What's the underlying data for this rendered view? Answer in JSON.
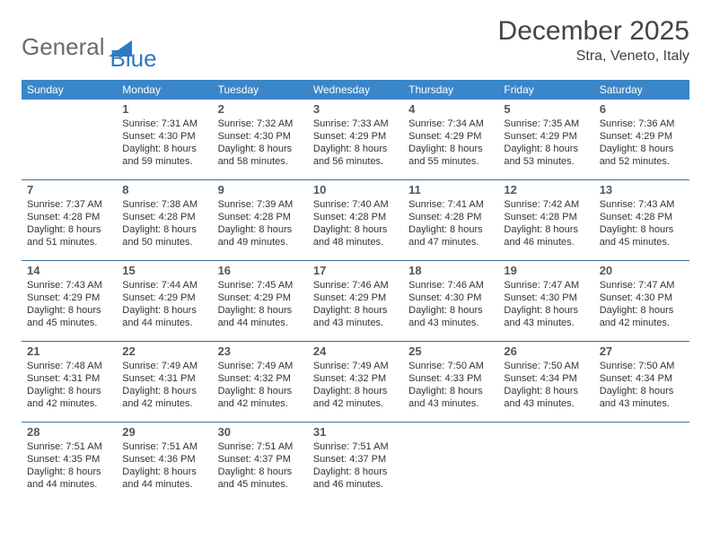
{
  "logo": {
    "text_pre": "General",
    "text_post": "Blue",
    "triangle_color": "#2f78c4"
  },
  "title": "December 2025",
  "location": "Stra, Veneto, Italy",
  "header_bg": "#3b86c8",
  "header_fg": "#ffffff",
  "row_border_color": "#3b6fa0",
  "text_color": "#333333",
  "font_family": "Arial",
  "day_headers": [
    "Sunday",
    "Monday",
    "Tuesday",
    "Wednesday",
    "Thursday",
    "Friday",
    "Saturday"
  ],
  "weeks": [
    [
      null,
      {
        "n": "1",
        "sr": "7:31 AM",
        "ss": "4:30 PM",
        "dl": "8 hours and 59 minutes."
      },
      {
        "n": "2",
        "sr": "7:32 AM",
        "ss": "4:30 PM",
        "dl": "8 hours and 58 minutes."
      },
      {
        "n": "3",
        "sr": "7:33 AM",
        "ss": "4:29 PM",
        "dl": "8 hours and 56 minutes."
      },
      {
        "n": "4",
        "sr": "7:34 AM",
        "ss": "4:29 PM",
        "dl": "8 hours and 55 minutes."
      },
      {
        "n": "5",
        "sr": "7:35 AM",
        "ss": "4:29 PM",
        "dl": "8 hours and 53 minutes."
      },
      {
        "n": "6",
        "sr": "7:36 AM",
        "ss": "4:29 PM",
        "dl": "8 hours and 52 minutes."
      }
    ],
    [
      {
        "n": "7",
        "sr": "7:37 AM",
        "ss": "4:28 PM",
        "dl": "8 hours and 51 minutes."
      },
      {
        "n": "8",
        "sr": "7:38 AM",
        "ss": "4:28 PM",
        "dl": "8 hours and 50 minutes."
      },
      {
        "n": "9",
        "sr": "7:39 AM",
        "ss": "4:28 PM",
        "dl": "8 hours and 49 minutes."
      },
      {
        "n": "10",
        "sr": "7:40 AM",
        "ss": "4:28 PM",
        "dl": "8 hours and 48 minutes."
      },
      {
        "n": "11",
        "sr": "7:41 AM",
        "ss": "4:28 PM",
        "dl": "8 hours and 47 minutes."
      },
      {
        "n": "12",
        "sr": "7:42 AM",
        "ss": "4:28 PM",
        "dl": "8 hours and 46 minutes."
      },
      {
        "n": "13",
        "sr": "7:43 AM",
        "ss": "4:28 PM",
        "dl": "8 hours and 45 minutes."
      }
    ],
    [
      {
        "n": "14",
        "sr": "7:43 AM",
        "ss": "4:29 PM",
        "dl": "8 hours and 45 minutes."
      },
      {
        "n": "15",
        "sr": "7:44 AM",
        "ss": "4:29 PM",
        "dl": "8 hours and 44 minutes."
      },
      {
        "n": "16",
        "sr": "7:45 AM",
        "ss": "4:29 PM",
        "dl": "8 hours and 44 minutes."
      },
      {
        "n": "17",
        "sr": "7:46 AM",
        "ss": "4:29 PM",
        "dl": "8 hours and 43 minutes."
      },
      {
        "n": "18",
        "sr": "7:46 AM",
        "ss": "4:30 PM",
        "dl": "8 hours and 43 minutes."
      },
      {
        "n": "19",
        "sr": "7:47 AM",
        "ss": "4:30 PM",
        "dl": "8 hours and 43 minutes."
      },
      {
        "n": "20",
        "sr": "7:47 AM",
        "ss": "4:30 PM",
        "dl": "8 hours and 42 minutes."
      }
    ],
    [
      {
        "n": "21",
        "sr": "7:48 AM",
        "ss": "4:31 PM",
        "dl": "8 hours and 42 minutes."
      },
      {
        "n": "22",
        "sr": "7:49 AM",
        "ss": "4:31 PM",
        "dl": "8 hours and 42 minutes."
      },
      {
        "n": "23",
        "sr": "7:49 AM",
        "ss": "4:32 PM",
        "dl": "8 hours and 42 minutes."
      },
      {
        "n": "24",
        "sr": "7:49 AM",
        "ss": "4:32 PM",
        "dl": "8 hours and 42 minutes."
      },
      {
        "n": "25",
        "sr": "7:50 AM",
        "ss": "4:33 PM",
        "dl": "8 hours and 43 minutes."
      },
      {
        "n": "26",
        "sr": "7:50 AM",
        "ss": "4:34 PM",
        "dl": "8 hours and 43 minutes."
      },
      {
        "n": "27",
        "sr": "7:50 AM",
        "ss": "4:34 PM",
        "dl": "8 hours and 43 minutes."
      }
    ],
    [
      {
        "n": "28",
        "sr": "7:51 AM",
        "ss": "4:35 PM",
        "dl": "8 hours and 44 minutes."
      },
      {
        "n": "29",
        "sr": "7:51 AM",
        "ss": "4:36 PM",
        "dl": "8 hours and 44 minutes."
      },
      {
        "n": "30",
        "sr": "7:51 AM",
        "ss": "4:37 PM",
        "dl": "8 hours and 45 minutes."
      },
      {
        "n": "31",
        "sr": "7:51 AM",
        "ss": "4:37 PM",
        "dl": "8 hours and 46 minutes."
      },
      null,
      null,
      null
    ]
  ],
  "labels": {
    "sunrise": "Sunrise:",
    "sunset": "Sunset:",
    "daylight": "Daylight:"
  }
}
